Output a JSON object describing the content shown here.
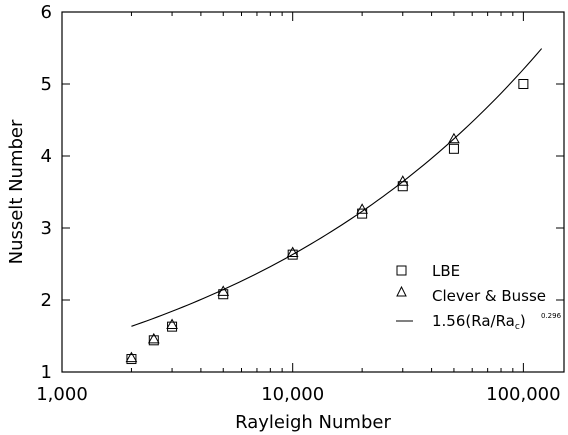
{
  "chart_data": {
    "type": "scatter",
    "xlabel": "Rayleigh Number",
    "ylabel": "Nusselt Number",
    "xscale": "log",
    "xlim": [
      1000,
      150000
    ],
    "ylim": [
      1,
      6
    ],
    "xticks": [
      1000,
      10000,
      100000
    ],
    "xtick_labels": [
      "1,000",
      "10,000",
      "100,000"
    ],
    "yticks": [
      1,
      2,
      3,
      4,
      5,
      6
    ],
    "ytick_labels": [
      "1",
      "2",
      "3",
      "4",
      "5",
      "6"
    ],
    "grid": false,
    "legend_position": "bottom-right",
    "series": [
      {
        "name": "LBE",
        "marker": "square",
        "x": [
          2000,
          2500,
          3000,
          5000,
          10000,
          20000,
          30000,
          50000,
          100000
        ],
        "y": [
          1.18,
          1.44,
          1.63,
          2.08,
          2.63,
          3.2,
          3.58,
          4.1,
          5.0
        ]
      },
      {
        "name": "Clever & Busse",
        "marker": "triangle",
        "x": [
          2000,
          2500,
          3000,
          5000,
          10000,
          20000,
          30000,
          50000
        ],
        "y": [
          1.2,
          1.46,
          1.66,
          2.12,
          2.66,
          3.26,
          3.65,
          4.24
        ]
      },
      {
        "name": "1.56(Ra/Ra",
        "legend_subscript": "c",
        "legend_tail": ")",
        "legend_exponent": "0.296",
        "style": "line",
        "coefficient": 1.56,
        "critical_ra": 1708,
        "exponent": 0.296,
        "x_range": [
          2000,
          120000
        ]
      }
    ]
  }
}
